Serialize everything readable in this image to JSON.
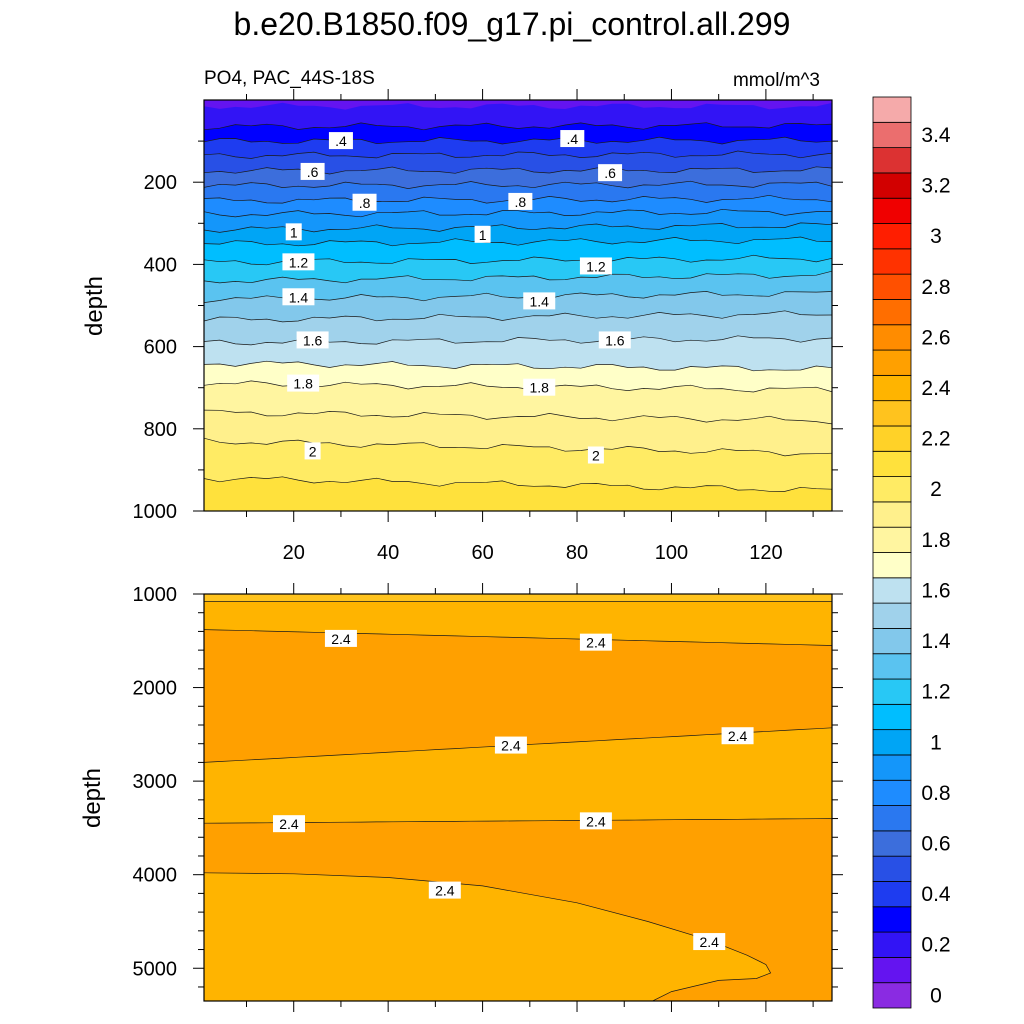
{
  "title": "b.e20.B1850.f09_g17.pi_control.all.299",
  "subtitle_left": "PO4, PAC_44S-18S",
  "subtitle_right": "mmol/m^3",
  "chart_data": [
    {
      "type": "contour",
      "panel": "upper",
      "title": "PO4, PAC_44S-18S",
      "units": "mmol/m^3",
      "xlabel": "",
      "ylabel": "depth",
      "xlim": [
        1,
        134
      ],
      "ylim": [
        1000,
        0
      ],
      "xticks": [
        20,
        40,
        60,
        80,
        100,
        120
      ],
      "yticks": [
        200,
        400,
        600,
        800,
        1000
      ],
      "contours": [
        {
          "level": 0.2,
          "depth_left": 15,
          "depth_right": 15
        },
        {
          "level": 0.3,
          "depth_left": 65,
          "depth_right": 62
        },
        {
          "level": 0.4,
          "depth_left": 100,
          "depth_right": 98
        },
        {
          "level": 0.5,
          "depth_left": 135,
          "depth_right": 132
        },
        {
          "level": 0.6,
          "depth_left": 172,
          "depth_right": 170
        },
        {
          "level": 0.7,
          "depth_left": 208,
          "depth_right": 205
        },
        {
          "level": 0.8,
          "depth_left": 245,
          "depth_right": 240
        },
        {
          "level": 0.9,
          "depth_left": 278,
          "depth_right": 272
        },
        {
          "level": 1.0,
          "depth_left": 315,
          "depth_right": 305
        },
        {
          "level": 1.1,
          "depth_left": 350,
          "depth_right": 340
        },
        {
          "level": 1.2,
          "depth_left": 395,
          "depth_right": 385
        },
        {
          "level": 1.3,
          "depth_left": 440,
          "depth_right": 425
        },
        {
          "level": 1.4,
          "depth_left": 485,
          "depth_right": 470
        },
        {
          "level": 1.5,
          "depth_left": 535,
          "depth_right": 520
        },
        {
          "level": 1.6,
          "depth_left": 590,
          "depth_right": 580
        },
        {
          "level": 1.7,
          "depth_left": 640,
          "depth_right": 655
        },
        {
          "level": 1.8,
          "depth_left": 690,
          "depth_right": 705
        },
        {
          "level": 1.9,
          "depth_left": 760,
          "depth_right": 780
        },
        {
          "level": 2.0,
          "depth_left": 830,
          "depth_right": 860
        },
        {
          "level": 2.1,
          "depth_left": 920,
          "depth_right": 950
        }
      ],
      "labels": [
        {
          "text": ".4",
          "x": 30,
          "depth": 100
        },
        {
          "text": ".4",
          "x": 79,
          "depth": 95
        },
        {
          "text": ".6",
          "x": 24,
          "depth": 175
        },
        {
          "text": ".6",
          "x": 87,
          "depth": 178
        },
        {
          "text": ".8",
          "x": 35,
          "depth": 250
        },
        {
          "text": ".8",
          "x": 68,
          "depth": 248
        },
        {
          "text": "1",
          "x": 20,
          "depth": 322
        },
        {
          "text": "1",
          "x": 60,
          "depth": 328
        },
        {
          "text": "1.2",
          "x": 21,
          "depth": 395
        },
        {
          "text": "1.2",
          "x": 84,
          "depth": 405
        },
        {
          "text": "1.4",
          "x": 21,
          "depth": 480
        },
        {
          "text": "1.4",
          "x": 72,
          "depth": 490
        },
        {
          "text": "1.6",
          "x": 24,
          "depth": 585
        },
        {
          "text": "1.6",
          "x": 88,
          "depth": 585
        },
        {
          "text": "1.8",
          "x": 22,
          "depth": 690
        },
        {
          "text": "1.8",
          "x": 72,
          "depth": 700
        },
        {
          "text": "2",
          "x": 24,
          "depth": 855
        },
        {
          "text": "2",
          "x": 84,
          "depth": 865
        }
      ]
    },
    {
      "type": "contour",
      "panel": "lower",
      "xlabel": "",
      "ylabel": "depth",
      "xlim": [
        1,
        134
      ],
      "ylim": [
        5350,
        1000
      ],
      "yticks": [
        1000,
        2000,
        3000,
        4000,
        5000
      ],
      "contours": [
        {
          "level": 2.3,
          "depth_left": 1080,
          "depth_right": 1080
        },
        {
          "level": 2.4,
          "depth_left": 1380,
          "depth_right": 1550
        },
        {
          "level": 2.4,
          "depth_left": 2800,
          "depth_right": 2430
        },
        {
          "level": 2.4,
          "depth_left": 3450,
          "depth_right": 3400
        },
        {
          "level": 2.4,
          "depth_left": 3980,
          "depth_right": 5100
        }
      ],
      "labels": [
        {
          "text": "2.4",
          "x": 30,
          "depth": 1480
        },
        {
          "text": "2.4",
          "x": 84,
          "depth": 1520
        },
        {
          "text": "2.4",
          "x": 66,
          "depth": 2620
        },
        {
          "text": "2.4",
          "x": 114,
          "depth": 2520
        },
        {
          "text": "2.4",
          "x": 19,
          "depth": 3460
        },
        {
          "text": "2.4",
          "x": 84,
          "depth": 3430
        },
        {
          "text": "2.4",
          "x": 52,
          "depth": 4170
        },
        {
          "text": "2.4",
          "x": 108,
          "depth": 4720
        }
      ]
    },
    {
      "type": "colorbar",
      "orientation": "vertical",
      "levels": [
        0,
        0.1,
        0.2,
        0.3,
        0.4,
        0.5,
        0.6,
        0.7,
        0.8,
        0.9,
        1,
        1.1,
        1.2,
        1.3,
        1.4,
        1.5,
        1.6,
        1.7,
        1.8,
        1.9,
        2,
        2.1,
        2.2,
        2.3,
        2.4,
        2.5,
        2.6,
        2.7,
        2.8,
        2.9,
        3,
        3.1,
        3.2,
        3.3,
        3.4,
        3.5
      ],
      "tick_labels": [
        "0",
        "0.2",
        "0.4",
        "0.6",
        "0.8",
        "1",
        "1.2",
        "1.4",
        "1.6",
        "1.8",
        "2",
        "2.2",
        "2.4",
        "2.6",
        "2.8",
        "3",
        "3.2",
        "3.4"
      ],
      "colors": [
        "#8a2be2",
        "#6414f0",
        "#3214f5",
        "#0000ff",
        "#1e3cf0",
        "#2850e6",
        "#3c6edc",
        "#2a78f0",
        "#1e8cff",
        "#1496fa",
        "#00a5f5",
        "#00beff",
        "#28c8f5",
        "#5ac3f0",
        "#82c8eb",
        "#a0d2eb",
        "#bee1f0",
        "#ffffc8",
        "#fff5a0",
        "#fff08c",
        "#ffeb64",
        "#ffe13c",
        "#ffd228",
        "#ffc31e",
        "#ffb400",
        "#ffa000",
        "#ff8c00",
        "#ff6e00",
        "#ff5000",
        "#ff3200",
        "#ff1e00",
        "#f00000",
        "#d20000",
        "#dc3232",
        "#eb6e6e",
        "#f5aaaa"
      ]
    }
  ]
}
